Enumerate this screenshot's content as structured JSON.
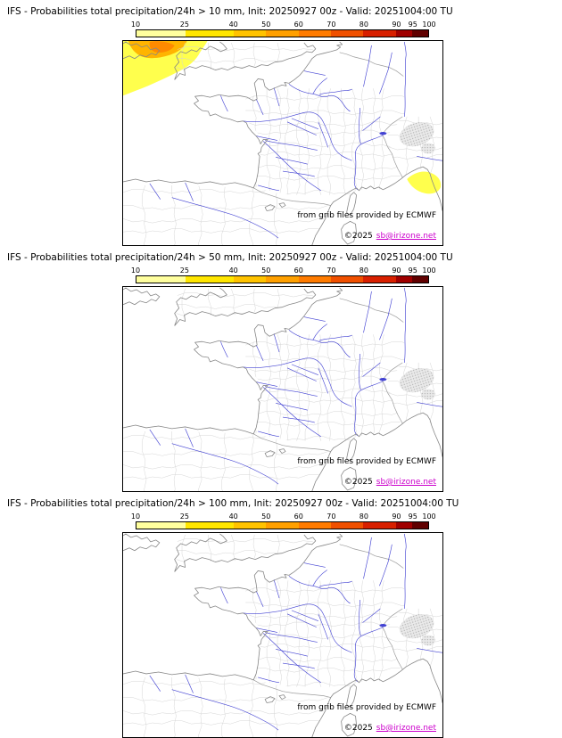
{
  "meta": {
    "model": "IFS",
    "variable": "total precipitation/24h",
    "init": "20250927 00z",
    "valid": "20251004:00 TU"
  },
  "panels": [
    {
      "title": "IFS - Probabilities total precipitation/24h > 10 mm, Init: 20250927 00z - Valid: 20251004:00 TU",
      "threshold": "> 10 mm",
      "credit_provider": "from grib files provided by ECMWF",
      "credit_copyright": "©2025",
      "credit_link": "sb@irizone.net",
      "has_precip_areas": true
    },
    {
      "title": "IFS - Probabilities total precipitation/24h > 50 mm, Init: 20250927 00z - Valid: 20251004:00 TU",
      "threshold": "> 50 mm",
      "credit_provider": "from grib files provided by ECMWF",
      "credit_copyright": "©2025",
      "credit_link": "sb@irizone.net",
      "has_precip_areas": false
    },
    {
      "title": "IFS - Probabilities total precipitation/24h > 100 mm, Init: 20250927 00z - Valid: 20251004:00 TU",
      "threshold": "> 100 mm",
      "credit_provider": "from grib files provided by ECMWF",
      "credit_copyright": "©2025",
      "credit_link": "sb@irizone.net",
      "has_precip_areas": false
    }
  ],
  "colorbar": {
    "unit": "%",
    "tick_values": [
      10,
      25,
      40,
      50,
      60,
      70,
      80,
      90,
      95,
      100
    ],
    "segment_colors": [
      "#ffff9e",
      "#ffe600",
      "#ffc300",
      "#ffa000",
      "#ff7b00",
      "#f05000",
      "#d82000",
      "#a00000",
      "#600000"
    ]
  },
  "colors": {
    "accent_link": "#cc00cc",
    "coastline": "#878787",
    "admin_boundary": "#d4d4d4",
    "country_border": "#9c9c9c",
    "river": "#4343d3",
    "map_frame": "#000000",
    "precip_yellow": "#ffff4d",
    "precip_orange": "#ffb400",
    "precip_deep_orange": "#ff8a00"
  }
}
